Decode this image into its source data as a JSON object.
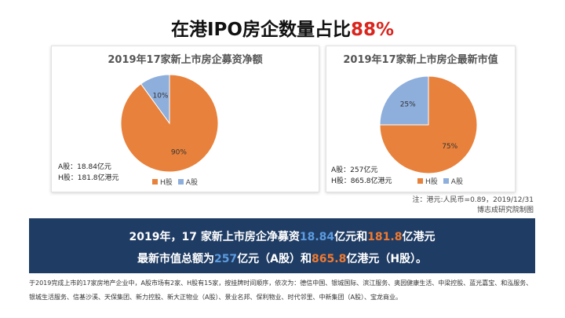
{
  "headline": {
    "prefix": "在港IPO房企数量占比",
    "accent": "88%"
  },
  "chart_data": [
    {
      "type": "pie",
      "title": "2019年17家新上市房企募资净额",
      "slices": [
        {
          "name": "H股",
          "value": 90,
          "label": "90%",
          "color": "#e8813b"
        },
        {
          "name": "A股",
          "value": 10,
          "label": "10%",
          "color": "#8eaedc"
        }
      ],
      "legend": [
        "H股",
        "A股"
      ],
      "notes": [
        "A股：18.84亿元",
        "H股：181.8亿港元"
      ]
    },
    {
      "type": "pie",
      "title": "2019年17家新上市房企最新市值",
      "slices": [
        {
          "name": "H股",
          "value": 75,
          "label": "75%",
          "color": "#e8813b"
        },
        {
          "name": "A股",
          "value": 25,
          "label": "25%",
          "color": "#8eaedc"
        }
      ],
      "legend": [
        "H股",
        "A股"
      ],
      "notes": [
        "A股：257亿元",
        "H股：865.8亿港元"
      ]
    }
  ],
  "source": {
    "line1": "注：港元:人民币=0.89，2019/12/31",
    "line2": "博志成研究院制图"
  },
  "banner": {
    "line1": {
      "a": "2019年，17 家新上市房企净募资",
      "b": "18.84",
      "c": "亿元和",
      "d": "181.8",
      "e": "亿港元"
    },
    "line2": {
      "a": "最新市值总额为",
      "b": "257",
      "c": "亿元（A股）和",
      "d": "865.8",
      "e": "亿港元（H股）。"
    }
  },
  "footnote": "于2019完成上市的17家房地产企业中，A股市场有2家、H股有15家，按挂牌时间顺序，依次为：德信中国、银城国际、滨江服务、奥园健康生活、中梁控股、蓝光嘉宝、和泓服务、银城生活服务、信基沙溪、天保集团、新力控股、新大正物业（A股）、景业名邦、保利物业、时代邻里、中新集团（A股）、宝龙商业。"
}
